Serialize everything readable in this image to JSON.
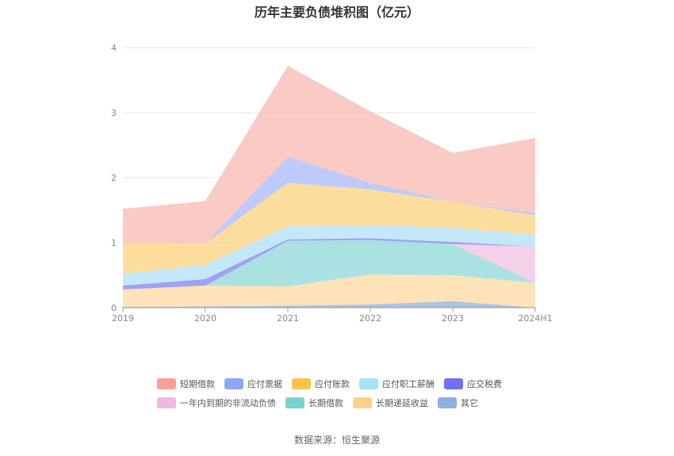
{
  "chart_data": {
    "type": "area",
    "title": "历年主要负债堆积图（亿元）",
    "categories": [
      "2019",
      "2020",
      "2021",
      "2022",
      "2023",
      "2024H1"
    ],
    "ylim": [
      0,
      4
    ],
    "yticks": [
      "0",
      "1",
      "2",
      "3",
      "4"
    ],
    "stacked": true,
    "grid": true,
    "legend_position": "bottom",
    "series": [
      {
        "name": "其它",
        "color": "#8eaedc",
        "values": [
          0.01,
          0.02,
          0.03,
          0.05,
          0.1,
          0.0
        ]
      },
      {
        "name": "长期递延收益",
        "color": "#fdd9a0",
        "values": [
          0.27,
          0.32,
          0.3,
          0.46,
          0.4,
          0.38
        ]
      },
      {
        "name": "长期借款",
        "color": "#8ed8d8",
        "values": [
          0.0,
          0.0,
          0.7,
          0.53,
          0.48,
          0.0
        ]
      },
      {
        "name": "一年内到期的非流动负债",
        "color": "#f0c2e0",
        "values": [
          0.0,
          0.0,
          0.0,
          0.0,
          0.0,
          0.56
        ]
      },
      {
        "name": "应交税费",
        "color": "#8080f0",
        "values": [
          0.06,
          0.1,
          0.02,
          0.03,
          0.03,
          0.0
        ]
      },
      {
        "name": "应付职工薪酬",
        "color": "#b0e0f8",
        "values": [
          0.18,
          0.22,
          0.2,
          0.2,
          0.22,
          0.18
        ]
      },
      {
        "name": "应付账款",
        "color": "#fcd27e",
        "values": [
          0.48,
          0.33,
          0.67,
          0.55,
          0.4,
          0.3
        ]
      },
      {
        "name": "应付票据",
        "color": "#a8b8f8",
        "values": [
          0.0,
          0.0,
          0.4,
          0.1,
          0.0,
          0.04
        ]
      },
      {
        "name": "短期借款",
        "color": "#f8b8b0",
        "values": [
          0.52,
          0.65,
          1.4,
          1.1,
          0.75,
          1.15
        ]
      }
    ]
  },
  "legend": [
    {
      "name": "短期借款",
      "color": "#f8a098"
    },
    {
      "name": "应付票据",
      "color": "#8ea8f8"
    },
    {
      "name": "应付账款",
      "color": "#fcc24a"
    },
    {
      "name": "应付职工薪酬",
      "color": "#a8e0f8"
    },
    {
      "name": "应交税费",
      "color": "#7070f0"
    },
    {
      "name": "一年内到期的非流动负债",
      "color": "#f0b8dc"
    },
    {
      "name": "长期借款",
      "color": "#7ad2d2"
    },
    {
      "name": "长期递延收益",
      "color": "#fdd08c"
    },
    {
      "name": "其它",
      "color": "#8eaedc"
    }
  ],
  "source": "数据来源：恒生聚源"
}
